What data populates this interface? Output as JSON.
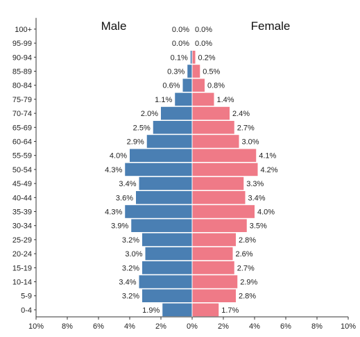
{
  "chart_data": {
    "type": "bar",
    "orientation": "horizontal",
    "layout": "population-pyramid",
    "categories": [
      "0-4",
      "5-9",
      "10-14",
      "15-19",
      "20-24",
      "25-29",
      "30-34",
      "35-39",
      "40-44",
      "45-49",
      "50-54",
      "55-59",
      "60-64",
      "65-69",
      "70-74",
      "75-79",
      "80-84",
      "85-89",
      "90-94",
      "95-99",
      "100+"
    ],
    "series": [
      {
        "name": "Male",
        "values": [
          1.9,
          3.2,
          3.4,
          3.2,
          3.0,
          3.2,
          3.9,
          4.3,
          3.6,
          3.4,
          4.3,
          4.0,
          2.9,
          2.5,
          2.0,
          1.1,
          0.6,
          0.3,
          0.1,
          0.0,
          0.0
        ],
        "labels": [
          "1.9%",
          "3.2%",
          "3.4%",
          "3.2%",
          "3.0%",
          "3.2%",
          "3.9%",
          "4.3%",
          "3.6%",
          "3.4%",
          "4.3%",
          "4.0%",
          "2.9%",
          "2.5%",
          "2.0%",
          "1.1%",
          "0.6%",
          "0.3%",
          "0.1%",
          "0.0%",
          "0.0%"
        ],
        "color": "#4a7fb3"
      },
      {
        "name": "Female",
        "values": [
          1.7,
          2.8,
          2.9,
          2.7,
          2.6,
          2.8,
          3.5,
          4.0,
          3.4,
          3.3,
          4.2,
          4.1,
          3.0,
          2.7,
          2.4,
          1.4,
          0.8,
          0.5,
          0.2,
          0.0,
          0.0
        ],
        "labels": [
          "1.7%",
          "2.8%",
          "2.9%",
          "2.7%",
          "2.6%",
          "2.8%",
          "3.5%",
          "4.0%",
          "3.4%",
          "3.3%",
          "4.2%",
          "4.1%",
          "3.0%",
          "2.7%",
          "2.4%",
          "1.4%",
          "0.8%",
          "0.5%",
          "0.2%",
          "0.0%",
          "0.0%"
        ],
        "color": "#ef7a87"
      }
    ],
    "xlim": [
      -10,
      10
    ],
    "xticks": [
      "10%",
      "8%",
      "6%",
      "4%",
      "2%",
      "0%",
      "2%",
      "4%",
      "6%",
      "8%",
      "10%"
    ],
    "xlabel": "",
    "ylabel": "",
    "title": "",
    "grid": false,
    "legend": "none"
  }
}
